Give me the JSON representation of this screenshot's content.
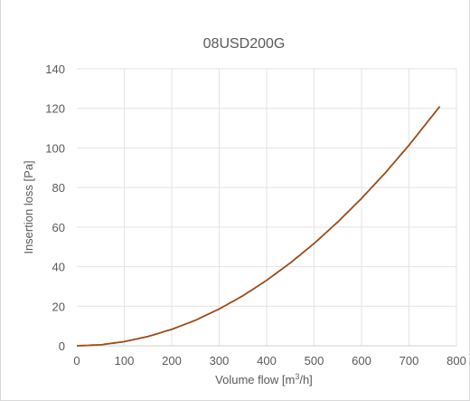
{
  "chart_data": {
    "type": "line",
    "title": "08USD200G",
    "xlabel": "Volume flow [m³/h]",
    "ylabel": "Insertion loss [Pa]",
    "xlim": [
      0,
      800
    ],
    "ylim": [
      0,
      140
    ],
    "x_ticks": [
      0,
      100,
      200,
      300,
      400,
      500,
      600,
      700,
      800
    ],
    "y_ticks": [
      0,
      20,
      40,
      60,
      80,
      100,
      120,
      140
    ],
    "grid": true,
    "legend": "none",
    "series": [
      {
        "color": "#9c4a15",
        "x": [
          0,
          50,
          100,
          150,
          200,
          250,
          300,
          350,
          400,
          450,
          500,
          550,
          600,
          650,
          700,
          765
        ],
        "y": [
          0,
          0.5,
          2.1,
          4.7,
          8.3,
          12.9,
          18.6,
          25.3,
          33.1,
          41.9,
          51.7,
          62.6,
          74.5,
          87.4,
          101.4,
          121
        ]
      }
    ]
  }
}
